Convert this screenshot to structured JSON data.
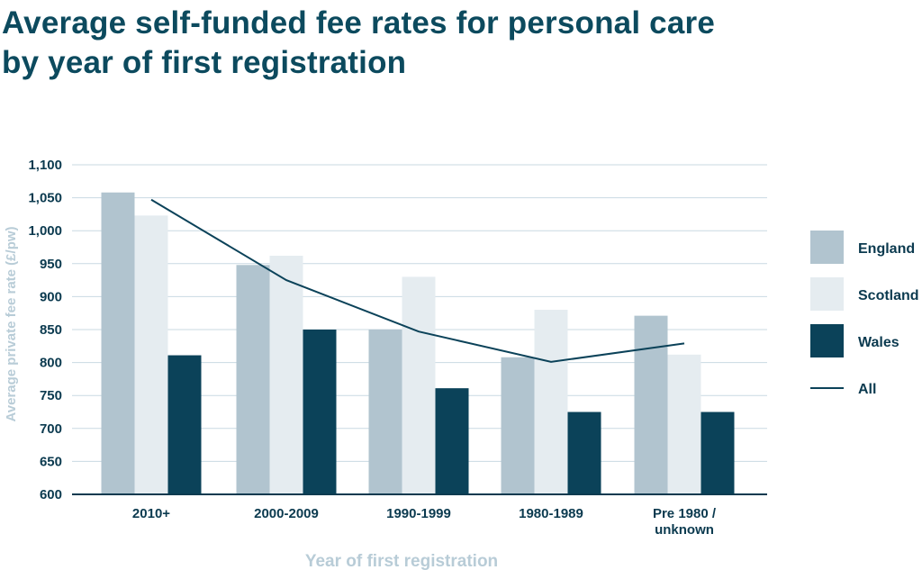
{
  "chart_data": {
    "type": "bar",
    "title": "Average self-funded fee rates for personal care by year of first registration",
    "xlabel": "Year of first registration",
    "ylabel": "Average private fee rate (£/pw)",
    "ylim": [
      600,
      1100
    ],
    "yticks": [
      600,
      650,
      700,
      750,
      800,
      850,
      900,
      950,
      1000,
      1050,
      1100
    ],
    "ytick_labels": [
      "600",
      "650",
      "700",
      "750",
      "800",
      "850",
      "900",
      "950",
      "1,000",
      "1,050",
      "1,100"
    ],
    "categories": [
      "2010+",
      "2000-2009",
      "1990-1999",
      "1980-1989",
      "Pre 1980 / unknown"
    ],
    "category_lines": [
      [
        "2010+"
      ],
      [
        "2000-2009"
      ],
      [
        "1990-1999"
      ],
      [
        "1980-1989"
      ],
      [
        "Pre 1980 /",
        "unknown"
      ]
    ],
    "series": [
      {
        "name": "England",
        "type": "bar",
        "color": "#b1c4cf",
        "values": [
          1058,
          948,
          850,
          808,
          871
        ]
      },
      {
        "name": "Scotland",
        "type": "bar",
        "color": "#e5ecf0",
        "values": [
          1023,
          962,
          930,
          880,
          812
        ]
      },
      {
        "name": "Wales",
        "type": "bar",
        "color": "#0b4259",
        "values": [
          811,
          850,
          761,
          725,
          725
        ]
      },
      {
        "name": "All",
        "type": "line",
        "color": "#0b4259",
        "values": [
          1047,
          925,
          847,
          801,
          829
        ]
      }
    ],
    "grid": true,
    "legend": "right"
  }
}
